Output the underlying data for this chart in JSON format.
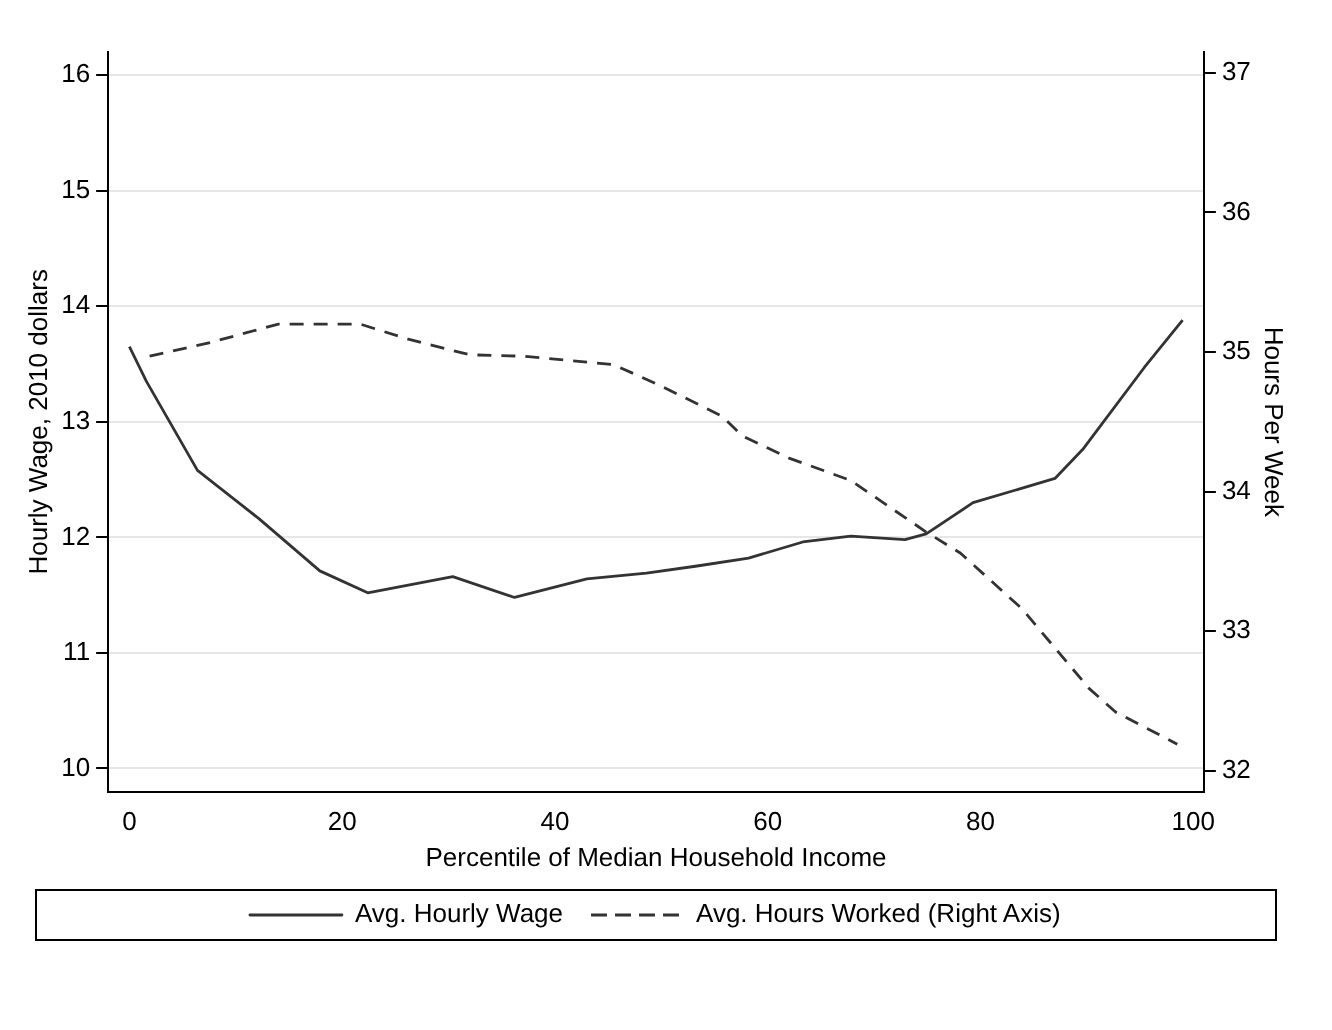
{
  "chart_data": {
    "type": "line",
    "xlabel": "Percentile of Median Household Income",
    "ylabel": "Hourly Wage, 2010 dollars",
    "y2label": "Hours Per Week",
    "xlim": [
      -2,
      101
    ],
    "xticks": [
      0,
      20,
      40,
      60,
      80,
      100
    ],
    "ylim": [
      9.8,
      16.2
    ],
    "yticks": [
      10,
      11,
      12,
      13,
      14,
      15,
      16
    ],
    "y2lim": [
      31.85,
      37.15
    ],
    "y2ticks": [
      32,
      33,
      34,
      35,
      36,
      37
    ],
    "grid": "y",
    "legend": "bottom",
    "marker": "none",
    "series": [
      {
        "name": "Avg. Hourly Wage",
        "color": "#333333",
        "line_style": "solid",
        "x": [
          0,
          1.6,
          6.4,
          12.2,
          17.9,
          22.4,
          30.4,
          36.2,
          43,
          48.6,
          53.2,
          58.2,
          63.3,
          67.8,
          72.9,
          74.9,
          79.3,
          87,
          89.6,
          95.4,
          99
        ],
        "values": [
          13.65,
          13.35,
          12.58,
          12.16,
          11.71,
          11.52,
          11.66,
          11.48,
          11.64,
          11.69,
          11.75,
          11.82,
          11.96,
          12.01,
          11.98,
          12.03,
          12.3,
          12.51,
          12.76,
          13.47,
          13.88
        ]
      },
      {
        "name": "Avg. Hours Worked (Right Axis)",
        "color": "#333333",
        "line_style": "dashed",
        "axis": "y2",
        "x": [
          1.9,
          7.7,
          14,
          21.7,
          26.3,
          32,
          37.1,
          45.5,
          49.9,
          55.7,
          57.6,
          62,
          67.8,
          74.9,
          78.1,
          83.9,
          90.2,
          92.7,
          98.5
        ],
        "values": [
          34.97,
          35.07,
          35.2,
          35.2,
          35.09,
          34.98,
          34.97,
          34.91,
          34.76,
          34.54,
          34.4,
          34.24,
          34.08,
          33.71,
          33.56,
          33.16,
          32.59,
          32.42,
          32.19
        ]
      }
    ]
  }
}
